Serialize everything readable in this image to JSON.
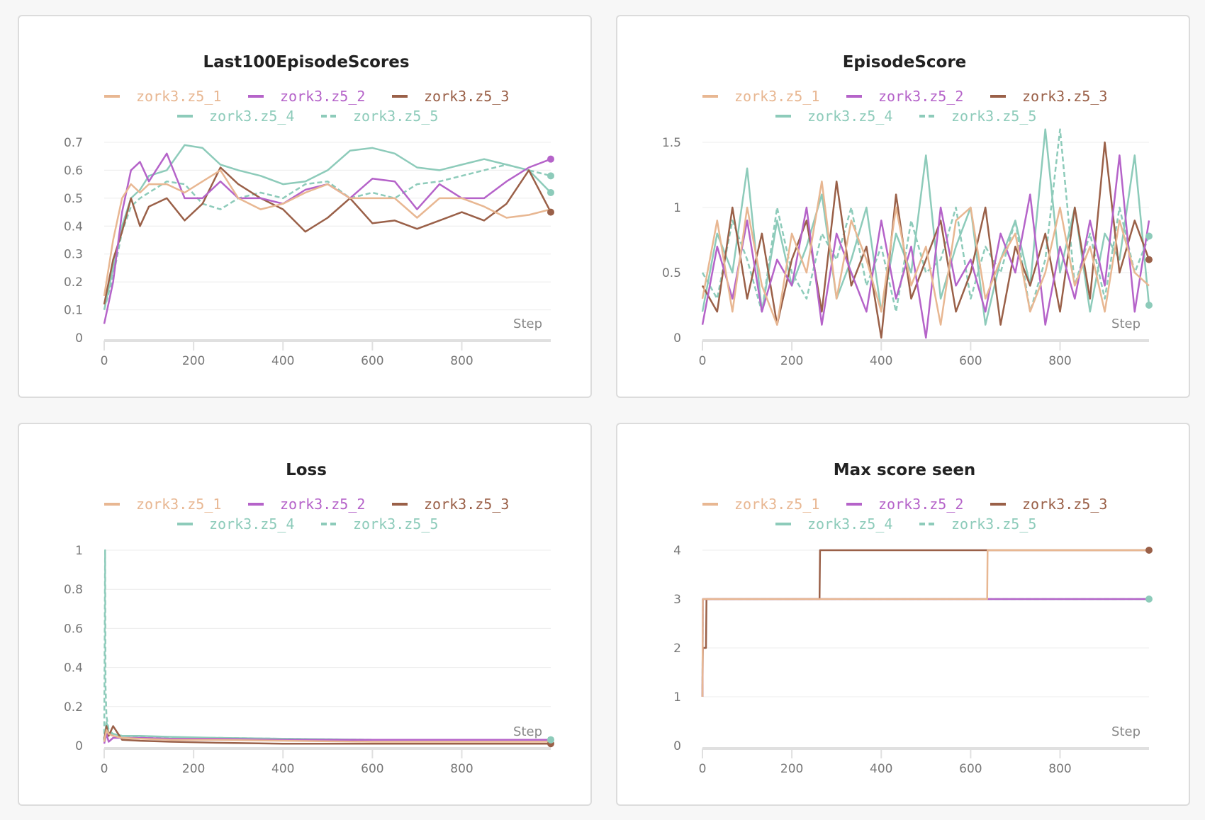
{
  "chart_data": [
    {
      "type": "line",
      "title": "Last100EpisodeScores",
      "xlabel": "Step",
      "ylabel": "",
      "xlim": [
        0,
        999
      ],
      "ylim": [
        0,
        0.7
      ],
      "xticks": [
        0,
        200,
        400,
        600,
        800
      ],
      "yticks": [
        0,
        0.1,
        0.2,
        0.3,
        0.4,
        0.5,
        0.6,
        0.7
      ],
      "ytick_labels": [
        "0",
        "0.1",
        "0.2",
        "0.3",
        "0.4",
        "0.5",
        "0.6",
        "0.7"
      ],
      "series": [
        {
          "name": "zork3.z5_1",
          "color": "#e8b792",
          "dashed": false,
          "x": [
            0,
            20,
            40,
            60,
            80,
            100,
            140,
            180,
            220,
            260,
            300,
            350,
            400,
            450,
            500,
            550,
            600,
            650,
            700,
            750,
            800,
            850,
            900,
            950,
            999
          ],
          "y": [
            0.15,
            0.35,
            0.5,
            0.55,
            0.52,
            0.55,
            0.55,
            0.52,
            0.56,
            0.6,
            0.5,
            0.46,
            0.48,
            0.52,
            0.55,
            0.5,
            0.5,
            0.5,
            0.43,
            0.5,
            0.5,
            0.47,
            0.43,
            0.44,
            0.46
          ],
          "end_dot": false
        },
        {
          "name": "zork3.z5_2",
          "color": "#b563c9",
          "dashed": false,
          "x": [
            0,
            20,
            40,
            60,
            80,
            100,
            140,
            180,
            220,
            260,
            300,
            350,
            400,
            450,
            500,
            550,
            600,
            650,
            700,
            750,
            800,
            850,
            900,
            950,
            999
          ],
          "y": [
            0.05,
            0.2,
            0.45,
            0.6,
            0.63,
            0.56,
            0.66,
            0.5,
            0.5,
            0.56,
            0.5,
            0.5,
            0.48,
            0.53,
            0.55,
            0.5,
            0.57,
            0.56,
            0.46,
            0.55,
            0.5,
            0.5,
            0.56,
            0.61,
            0.64
          ],
          "end_dot": true
        },
        {
          "name": "zork3.z5_3",
          "color": "#9a6048",
          "dashed": false,
          "x": [
            0,
            20,
            40,
            60,
            80,
            100,
            140,
            180,
            220,
            260,
            300,
            350,
            400,
            450,
            500,
            550,
            600,
            650,
            700,
            750,
            800,
            850,
            900,
            950,
            999
          ],
          "y": [
            0.12,
            0.28,
            0.38,
            0.5,
            0.4,
            0.47,
            0.5,
            0.42,
            0.48,
            0.61,
            0.55,
            0.5,
            0.46,
            0.38,
            0.43,
            0.5,
            0.41,
            0.42,
            0.39,
            0.42,
            0.45,
            0.42,
            0.48,
            0.6,
            0.45
          ],
          "end_dot": true
        },
        {
          "name": "zork3.z5_4",
          "color": "#8dcbba",
          "dashed": false,
          "x": [
            0,
            20,
            40,
            60,
            80,
            100,
            140,
            180,
            220,
            260,
            300,
            350,
            400,
            450,
            500,
            550,
            600,
            650,
            700,
            750,
            800,
            850,
            900,
            950,
            999
          ],
          "y": [
            0.1,
            0.25,
            0.4,
            0.5,
            0.53,
            0.58,
            0.6,
            0.69,
            0.68,
            0.62,
            0.6,
            0.58,
            0.55,
            0.56,
            0.6,
            0.67,
            0.68,
            0.66,
            0.61,
            0.6,
            0.62,
            0.64,
            0.62,
            0.6,
            0.52
          ],
          "end_dot": true
        },
        {
          "name": "zork3.z5_5",
          "color": "#8dcbba",
          "dashed": true,
          "x": [
            0,
            20,
            40,
            60,
            80,
            100,
            140,
            180,
            220,
            260,
            300,
            350,
            400,
            450,
            500,
            550,
            600,
            650,
            700,
            750,
            800,
            850,
            900,
            950,
            999
          ],
          "y": [
            0.1,
            0.22,
            0.38,
            0.47,
            0.5,
            0.52,
            0.56,
            0.55,
            0.48,
            0.46,
            0.5,
            0.52,
            0.5,
            0.55,
            0.56,
            0.5,
            0.52,
            0.5,
            0.55,
            0.56,
            0.58,
            0.6,
            0.62,
            0.6,
            0.58
          ],
          "end_dot": true
        }
      ]
    },
    {
      "type": "line",
      "title": "EpisodeScore",
      "xlabel": "Step",
      "ylabel": "",
      "xlim": [
        0,
        999
      ],
      "ylim": [
        0,
        1.5
      ],
      "xticks": [
        0,
        200,
        400,
        600,
        800
      ],
      "yticks": [
        0,
        0.5,
        1,
        1.5
      ],
      "ytick_labels": [
        "0",
        "0.5",
        "1",
        "1.5"
      ],
      "series": [
        {
          "name": "zork3.z5_1",
          "color": "#e8b792",
          "dashed": false,
          "x": [
            0,
            33,
            67,
            100,
            133,
            167,
            200,
            233,
            267,
            300,
            333,
            367,
            400,
            433,
            467,
            500,
            533,
            567,
            600,
            633,
            667,
            700,
            733,
            767,
            800,
            833,
            867,
            900,
            933,
            967,
            999
          ],
          "y": [
            0.3,
            0.9,
            0.2,
            1.0,
            0.4,
            0.1,
            0.8,
            0.5,
            1.2,
            0.3,
            0.9,
            0.6,
            0.2,
            1.0,
            0.4,
            0.7,
            0.1,
            0.9,
            1.0,
            0.3,
            0.6,
            0.8,
            0.2,
            0.5,
            1.0,
            0.4,
            0.7,
            0.2,
            0.9,
            0.5,
            0.4
          ],
          "end_dot": false
        },
        {
          "name": "zork3.z5_2",
          "color": "#b563c9",
          "dashed": false,
          "x": [
            0,
            33,
            67,
            100,
            133,
            167,
            200,
            233,
            267,
            300,
            333,
            367,
            400,
            433,
            467,
            500,
            533,
            567,
            600,
            633,
            667,
            700,
            733,
            767,
            800,
            833,
            867,
            900,
            933,
            967,
            999
          ],
          "y": [
            0.1,
            0.7,
            0.3,
            0.9,
            0.2,
            0.6,
            0.4,
            1.0,
            0.1,
            0.8,
            0.5,
            0.2,
            0.9,
            0.3,
            0.7,
            0.0,
            1.0,
            0.4,
            0.6,
            0.2,
            0.8,
            0.5,
            1.1,
            0.1,
            0.7,
            0.3,
            0.9,
            0.4,
            1.4,
            0.2,
            0.9
          ],
          "end_dot": false
        },
        {
          "name": "zork3.z5_3",
          "color": "#9a6048",
          "dashed": false,
          "x": [
            0,
            33,
            67,
            100,
            133,
            167,
            200,
            233,
            267,
            300,
            333,
            367,
            400,
            433,
            467,
            500,
            533,
            567,
            600,
            633,
            667,
            700,
            733,
            767,
            800,
            833,
            867,
            900,
            933,
            967,
            999
          ],
          "y": [
            0.4,
            0.2,
            1.0,
            0.3,
            0.8,
            0.1,
            0.6,
            0.9,
            0.2,
            1.2,
            0.4,
            0.7,
            0.0,
            1.1,
            0.3,
            0.6,
            0.9,
            0.2,
            0.5,
            1.0,
            0.1,
            0.7,
            0.4,
            0.8,
            0.2,
            1.0,
            0.3,
            1.5,
            0.5,
            0.9,
            0.6
          ],
          "end_dot": true
        },
        {
          "name": "zork3.z5_4",
          "color": "#8dcbba",
          "dashed": false,
          "x": [
            0,
            33,
            67,
            100,
            133,
            167,
            200,
            233,
            267,
            300,
            333,
            367,
            400,
            433,
            467,
            500,
            533,
            567,
            600,
            633,
            667,
            700,
            733,
            767,
            800,
            833,
            867,
            900,
            933,
            967,
            999
          ],
          "y": [
            0.2,
            0.8,
            0.5,
            1.3,
            0.2,
            0.9,
            0.4,
            0.7,
            1.1,
            0.3,
            0.6,
            1.0,
            0.2,
            0.8,
            0.5,
            1.4,
            0.3,
            0.7,
            1.0,
            0.1,
            0.6,
            0.9,
            0.4,
            1.6,
            0.5,
            1.0,
            0.2,
            0.8,
            0.6,
            1.4,
            0.25
          ],
          "end_dot": true
        },
        {
          "name": "zork3.z5_5",
          "color": "#8dcbba",
          "dashed": true,
          "x": [
            0,
            33,
            67,
            100,
            133,
            167,
            200,
            233,
            267,
            300,
            333,
            367,
            400,
            433,
            467,
            500,
            533,
            567,
            600,
            633,
            667,
            700,
            733,
            767,
            800,
            833,
            867,
            900,
            933,
            967,
            999
          ],
          "y": [
            0.5,
            0.3,
            0.9,
            0.6,
            0.2,
            1.0,
            0.5,
            0.3,
            0.8,
            0.6,
            1.0,
            0.4,
            0.7,
            0.2,
            0.9,
            0.5,
            0.6,
            1.0,
            0.3,
            0.7,
            0.5,
            0.9,
            0.2,
            0.6,
            1.6,
            0.4,
            0.8,
            0.3,
            1.0,
            0.5,
            0.78
          ],
          "end_dot": true
        }
      ]
    },
    {
      "type": "line",
      "title": "Loss",
      "xlabel": "Step",
      "ylabel": "",
      "xlim": [
        0,
        999
      ],
      "ylim": [
        0,
        1
      ],
      "xticks": [
        0,
        200,
        400,
        600,
        800
      ],
      "yticks": [
        0,
        0.2,
        0.4,
        0.6,
        0.8,
        1
      ],
      "ytick_labels": [
        "0",
        "0.2",
        "0.4",
        "0.6",
        "0.8",
        "1"
      ],
      "series": [
        {
          "name": "zork3.z5_1",
          "color": "#e8b792",
          "dashed": false,
          "x": [
            0,
            5,
            10,
            20,
            40,
            80,
            150,
            250,
            400,
            600,
            800,
            999
          ],
          "y": [
            0.02,
            0.08,
            0.06,
            0.05,
            0.04,
            0.035,
            0.03,
            0.03,
            0.025,
            0.02,
            0.02,
            0.02
          ],
          "end_dot": false
        },
        {
          "name": "zork3.z5_2",
          "color": "#b563c9",
          "dashed": false,
          "x": [
            0,
            5,
            10,
            20,
            40,
            80,
            150,
            250,
            400,
            600,
            800,
            999
          ],
          "y": [
            0.01,
            0.06,
            0.02,
            0.04,
            0.04,
            0.04,
            0.035,
            0.035,
            0.03,
            0.03,
            0.03,
            0.03
          ],
          "end_dot": false
        },
        {
          "name": "zork3.z5_3",
          "color": "#9a6048",
          "dashed": false,
          "x": [
            0,
            5,
            10,
            20,
            40,
            80,
            150,
            250,
            400,
            600,
            800,
            999
          ],
          "y": [
            0.03,
            0.1,
            0.05,
            0.1,
            0.03,
            0.025,
            0.02,
            0.015,
            0.01,
            0.01,
            0.01,
            0.01
          ],
          "end_dot": true
        },
        {
          "name": "zork3.z5_4",
          "color": "#8dcbba",
          "dashed": false,
          "x": [
            0,
            5,
            10,
            20,
            40,
            80,
            150,
            250,
            400,
            600,
            800,
            999
          ],
          "y": [
            0.03,
            0.12,
            0.06,
            0.06,
            0.05,
            0.05,
            0.045,
            0.04,
            0.035,
            0.03,
            0.03,
            0.03
          ],
          "end_dot": true
        },
        {
          "name": "zork3.z5_5",
          "color": "#8dcbba",
          "dashed": true,
          "x": [
            0,
            2,
            3,
            5,
            10,
            20,
            40,
            80,
            150,
            250,
            400,
            600,
            800,
            999
          ],
          "y": [
            0.02,
            1.0,
            0.3,
            0.15,
            0.08,
            0.06,
            0.05,
            0.045,
            0.04,
            0.04,
            0.035,
            0.03,
            0.03,
            0.03
          ],
          "end_dot": true
        }
      ]
    },
    {
      "type": "line",
      "title": "Max score seen",
      "xlabel": "Step",
      "ylabel": "",
      "xlim": [
        0,
        999
      ],
      "ylim": [
        0,
        4
      ],
      "xticks": [
        0,
        200,
        400,
        600,
        800
      ],
      "yticks": [
        0,
        1,
        2,
        3,
        4
      ],
      "ytick_labels": [
        "0",
        "1",
        "2",
        "3",
        "4"
      ],
      "series": [
        {
          "name": "zork3.z5_1",
          "color": "#e8b792",
          "dashed": false,
          "x": [
            0,
            1,
            8,
            9,
            637,
            638,
            999
          ],
          "y": [
            1,
            3,
            3,
            3,
            3,
            4,
            4
          ],
          "end_dot": false
        },
        {
          "name": "zork3.z5_2",
          "color": "#b563c9",
          "dashed": false,
          "x": [
            0,
            1,
            999
          ],
          "y": [
            1,
            3,
            3
          ],
          "end_dot": false
        },
        {
          "name": "zork3.z5_3",
          "color": "#9a6048",
          "dashed": false,
          "x": [
            0,
            1,
            8,
            9,
            262,
            263,
            999
          ],
          "y": [
            1,
            2,
            2,
            3,
            3,
            4,
            4
          ],
          "end_dot": true
        },
        {
          "name": "zork3.z5_4",
          "color": "#8dcbba",
          "dashed": false,
          "x": [
            0,
            1,
            999
          ],
          "y": [
            1,
            3,
            3
          ],
          "end_dot": true
        },
        {
          "name": "zork3.z5_5",
          "color": "#8dcbba",
          "dashed": true,
          "x": [
            0,
            1,
            999
          ],
          "y": [
            1,
            3,
            3
          ],
          "end_dot": false
        }
      ]
    }
  ]
}
